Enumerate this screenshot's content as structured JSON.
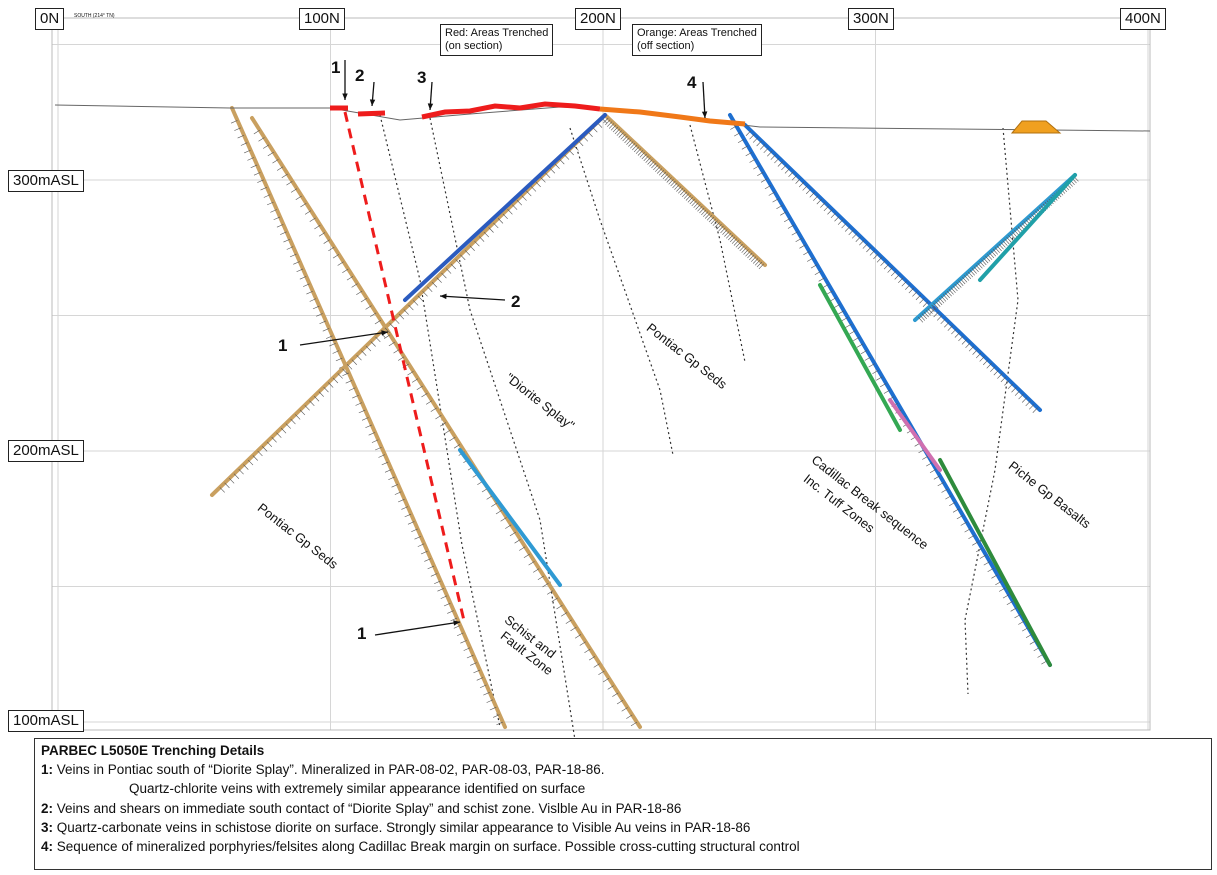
{
  "northings": [
    {
      "label": "0N",
      "value": 0
    },
    {
      "label": "100N",
      "value": 100
    },
    {
      "label": "200N",
      "value": 200
    },
    {
      "label": "300N",
      "value": 300
    },
    {
      "label": "400N",
      "value": 400
    }
  ],
  "elevations": [
    {
      "label": "300mASL",
      "value": 300
    },
    {
      "label": "200mASL",
      "value": 200
    },
    {
      "label": "100mASL",
      "value": 100
    }
  ],
  "section_tag": "SOUTH (214° TN)",
  "legend": {
    "red": {
      "line1": "Red: Areas Trenched",
      "line2": "(on section)"
    },
    "orange": {
      "line1": "Orange: Areas Trenched",
      "line2": "(off section)"
    }
  },
  "trench_markers": [
    "1",
    "2",
    "3",
    "4"
  ],
  "callouts": [
    "1",
    "2",
    "1"
  ],
  "units": [
    "Pontiac Gp Seds",
    "\"Diorite Splay\"",
    "Pontiac Gp Seds",
    "Schist and",
    "Fault Zone",
    "Cadillac Break sequence",
    "Inc. Tuff Zones",
    "Piche Gp Basalts"
  ],
  "colors": {
    "trench_on": "#ee1c1c",
    "trench_off": "#f07818",
    "drill_trace": "#d6b07a",
    "fault": "#333333",
    "grid": "#d6d6d6",
    "dump": "#f0a020"
  },
  "details": {
    "title": "PARBEC L5050E Trenching Details",
    "items": [
      {
        "key": "1:",
        "text": " Veins in Pontiac south of “Diorite Splay”. Mineralized in PAR-08-02, PAR-08-03, PAR-18-86."
      },
      {
        "key": "",
        "text": "Quartz-chlorite veins with extremely similar appearance identified on surface"
      },
      {
        "key": "2:",
        "text": " Veins and shears on immediate south contact of “Diorite Splay” and schist zone. Vislble Au in PAR-18-86"
      },
      {
        "key": "3:",
        "text": " Quartz-carbonate veins in schistose diorite on surface. Strongly similar appearance to Visible Au veins in PAR-18-86"
      },
      {
        "key": "4:",
        "text": " Sequence of mineralized porphyries/felsites along Cadillac Break margin on surface. Possible cross-cutting structural control"
      }
    ]
  }
}
